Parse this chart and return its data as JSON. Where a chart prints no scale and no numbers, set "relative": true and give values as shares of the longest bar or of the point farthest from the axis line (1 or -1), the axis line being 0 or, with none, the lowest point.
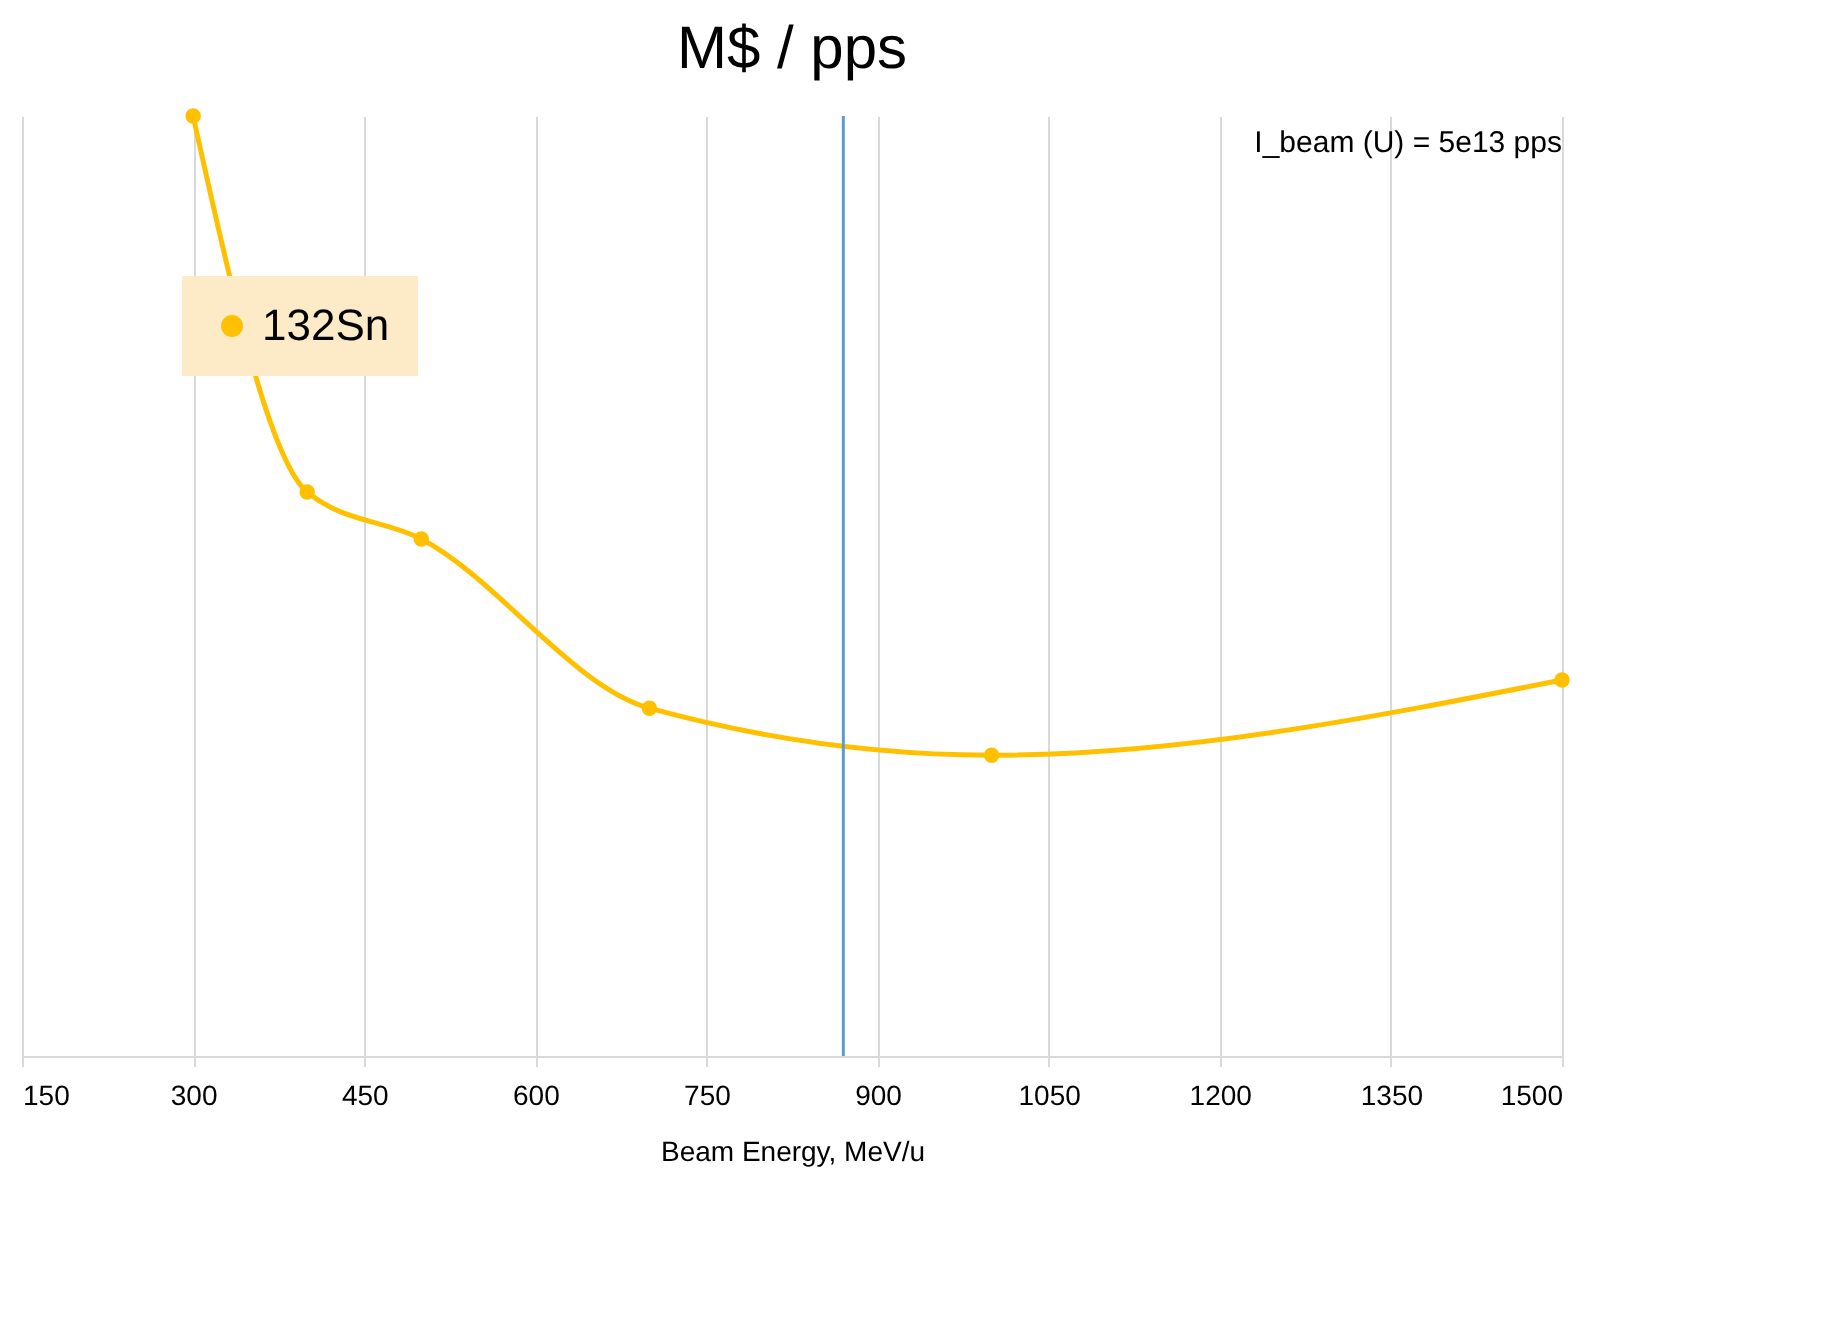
{
  "chart_data": {
    "type": "line",
    "title": "M$  /  pps",
    "xlabel": "Beam Energy, MeV/u",
    "x": [
      300,
      400,
      500,
      700,
      1000,
      1500
    ],
    "series": [
      {
        "name": "132Sn",
        "color": "#ffc000",
        "values": [
          1,
          0.6,
          0.55,
          0.37,
          0.32,
          0.4
        ]
      }
    ],
    "relative": true,
    "xlim": [
      150,
      1500
    ],
    "xticks": [
      150,
      300,
      450,
      600,
      750,
      900,
      1050,
      1200,
      1350,
      1500
    ],
    "ref_lines": [
      {
        "axis": "x",
        "value": 870,
        "color": "#5b9bd5"
      }
    ],
    "annotations": [
      "I_beam (U) = 5e13 pps"
    ],
    "grid": "x",
    "legend": "top left",
    "marker": "circle",
    "line_style": "solid"
  }
}
